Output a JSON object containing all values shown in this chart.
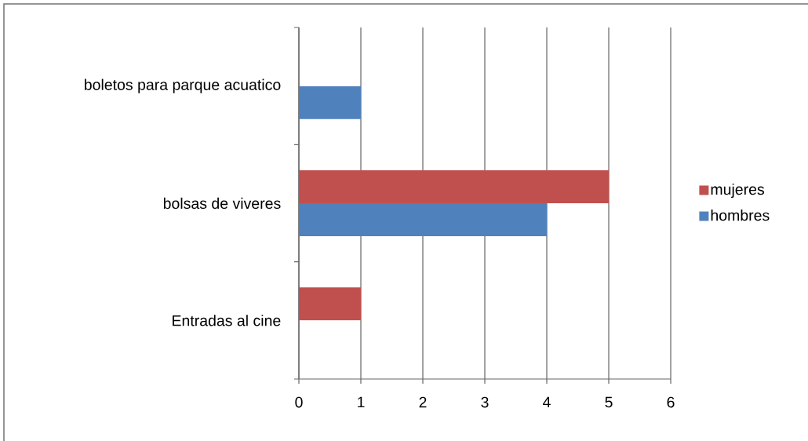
{
  "chart_data": {
    "type": "bar",
    "orientation": "horizontal",
    "categories": [
      "boletos para parque acuatico",
      "bolsas de viveres",
      "Entradas al cine"
    ],
    "series": [
      {
        "name": "hombres",
        "color": "#4f81bd",
        "values": [
          1,
          4,
          null
        ]
      },
      {
        "name": "mujeres",
        "color": "#c0504d",
        "values": [
          null,
          5,
          1
        ]
      }
    ],
    "xlim": [
      0,
      6
    ],
    "xticks": [
      0,
      1,
      2,
      3,
      4,
      5,
      6
    ],
    "grid": "x",
    "legend": "right"
  }
}
